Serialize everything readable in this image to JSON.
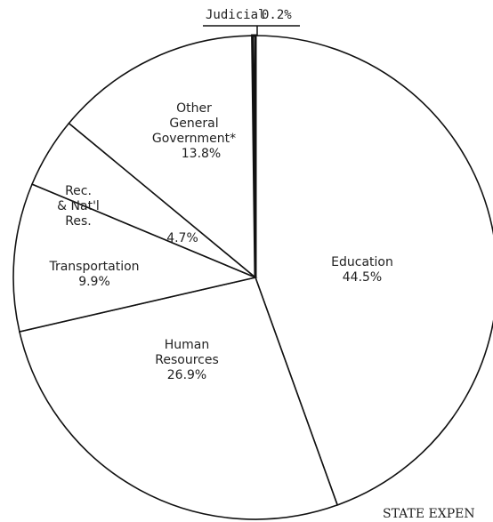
{
  "chart_data": {
    "type": "pie",
    "labels": [
      [
        "Education"
      ],
      [
        "Human",
        "Resources"
      ],
      [
        "Transportation"
      ],
      [
        "Rec.",
        "& Nat'l",
        "Res."
      ],
      [
        "Other",
        "General",
        "Government*"
      ],
      [
        "Judicial"
      ]
    ],
    "values": [
      44.5,
      26.9,
      9.9,
      4.7,
      13.8,
      0.2
    ],
    "value_labels": [
      "44.5%",
      "26.9%",
      "9.9%",
      "4.7%",
      "13.8%",
      "0.2%"
    ],
    "color": "#ffffff",
    "footer": "STATE EXPEN"
  }
}
